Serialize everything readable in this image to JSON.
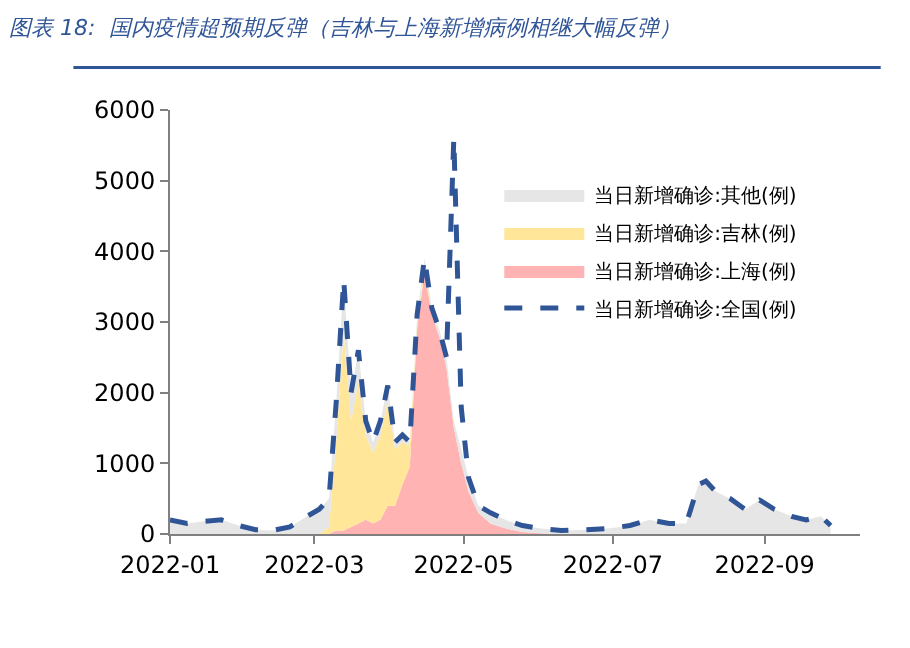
{
  "chart_data": {
    "type": "area",
    "title": "图表 18:  国内疫情超预期反弹（吉林与上海新增病例相继大幅反弹）",
    "stacked": true,
    "legend": "top right",
    "x": [
      "2022-01-01",
      "2022-01-08",
      "2022-01-15",
      "2022-01-22",
      "2022-01-29",
      "2022-02-05",
      "2022-02-12",
      "2022-02-19",
      "2022-02-26",
      "2022-03-03",
      "2022-03-07",
      "2022-03-10",
      "2022-03-13",
      "2022-03-16",
      "2022-03-19",
      "2022-03-22",
      "2022-03-25",
      "2022-03-28",
      "2022-03-31",
      "2022-04-03",
      "2022-04-06",
      "2022-04-09",
      "2022-04-12",
      "2022-04-15",
      "2022-04-18",
      "2022-04-21",
      "2022-04-24",
      "2022-04-27",
      "2022-04-30",
      "2022-05-03",
      "2022-05-07",
      "2022-05-12",
      "2022-05-18",
      "2022-05-25",
      "2022-06-01",
      "2022-06-10",
      "2022-06-20",
      "2022-06-30",
      "2022-07-08",
      "2022-07-16",
      "2022-07-24",
      "2022-07-31",
      "2022-08-05",
      "2022-08-08",
      "2022-08-12",
      "2022-08-18",
      "2022-08-24",
      "2022-08-30",
      "2022-09-05",
      "2022-09-12",
      "2022-09-18",
      "2022-09-24",
      "2022-09-28"
    ],
    "series": [
      {
        "name": "当日新增确诊:上海(例)",
        "color": "#ffb3b3",
        "values": [
          0,
          0,
          0,
          0,
          0,
          0,
          0,
          0,
          0,
          0,
          0,
          50,
          50,
          100,
          150,
          200,
          150,
          200,
          400,
          400,
          700,
          950,
          2900,
          3700,
          3100,
          2800,
          2350,
          1500,
          1000,
          600,
          300,
          150,
          80,
          30,
          10,
          0,
          0,
          0,
          0,
          0,
          0,
          0,
          0,
          0,
          0,
          0,
          0,
          0,
          0,
          0,
          0,
          0,
          0
        ]
      },
      {
        "name": "当日新增确诊:吉林(例)",
        "color": "#ffe699",
        "values": [
          0,
          0,
          0,
          0,
          0,
          0,
          0,
          0,
          0,
          0,
          100,
          1300,
          2800,
          1500,
          2000,
          1200,
          1000,
          1200,
          1500,
          800,
          600,
          300,
          100,
          60,
          40,
          0,
          0,
          0,
          0,
          0,
          0,
          0,
          0,
          0,
          0,
          0,
          0,
          0,
          0,
          0,
          0,
          0,
          0,
          0,
          0,
          0,
          0,
          0,
          0,
          0,
          0,
          0,
          0
        ]
      },
      {
        "name": "当日新增确诊:其他(例)",
        "color": "#e6e6e6",
        "values": [
          200,
          150,
          180,
          200,
          120,
          60,
          50,
          100,
          250,
          350,
          400,
          550,
          750,
          400,
          450,
          200,
          150,
          200,
          200,
          100,
          100,
          50,
          100,
          140,
          60,
          100,
          150,
          100,
          200,
          200,
          100,
          150,
          120,
          90,
          70,
          50,
          60,
          80,
          120,
          200,
          150,
          150,
          700,
          750,
          600,
          500,
          350,
          480,
          350,
          250,
          200,
          250,
          120
        ]
      },
      {
        "name": "当日新增确诊:全国(例)",
        "type": "line",
        "color": "#2f5597",
        "line_style": "dashed",
        "values": [
          200,
          150,
          180,
          200,
          120,
          60,
          50,
          100,
          250,
          350,
          500,
          1900,
          3600,
          2000,
          2600,
          1600,
          1300,
          1600,
          2100,
          1300,
          1400,
          1300,
          3100,
          3900,
          3200,
          2900,
          2500,
          5600,
          1800,
          800,
          400,
          300,
          200,
          120,
          80,
          50,
          60,
          80,
          120,
          200,
          150,
          150,
          700,
          750,
          600,
          500,
          350,
          480,
          350,
          250,
          200,
          250,
          120
        ]
      }
    ],
    "xlim": [
      "2022-01-01",
      "2022-10-10"
    ],
    "xticks": [
      {
        "value": "2022-01-01",
        "label": "2022-01"
      },
      {
        "value": "2022-03-01",
        "label": "2022-03"
      },
      {
        "value": "2022-05-01",
        "label": "2022-05"
      },
      {
        "value": "2022-07-01",
        "label": "2022-07"
      },
      {
        "value": "2022-09-01",
        "label": "2022-09"
      }
    ],
    "ylim": [
      0,
      6000
    ],
    "yticks": [
      0,
      1000,
      2000,
      3000,
      4000,
      5000,
      6000
    ]
  }
}
